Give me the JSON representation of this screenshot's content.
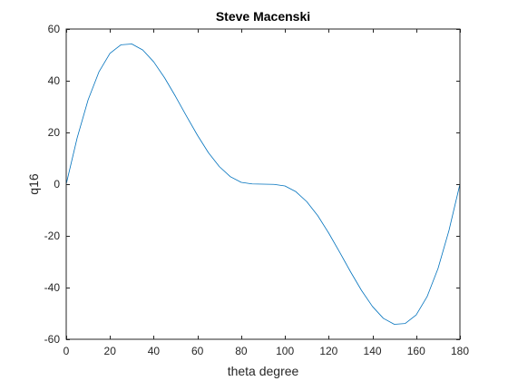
{
  "chart_data": {
    "type": "line",
    "title": "Steve Macenski",
    "xlabel": "theta degree",
    "ylabel": "q16",
    "xlim": [
      0,
      180
    ],
    "ylim": [
      -60,
      60
    ],
    "xticks": [
      0,
      20,
      40,
      60,
      80,
      100,
      120,
      140,
      160,
      180
    ],
    "yticks": [
      -60,
      -40,
      -20,
      0,
      20,
      40,
      60
    ],
    "grid": false,
    "series": [
      {
        "color": "#0072BD",
        "x": [
          0,
          5,
          10,
          15,
          20,
          25,
          30,
          35,
          40,
          45,
          50,
          55,
          60,
          65,
          70,
          75,
          80,
          85,
          90,
          95,
          100,
          105,
          110,
          115,
          120,
          125,
          130,
          135,
          140,
          145,
          150,
          155,
          160,
          165,
          170,
          175,
          180
        ],
        "y": [
          0,
          17.9,
          32.6,
          43.5,
          50.6,
          53.9,
          54.2,
          51.9,
          47.3,
          41.1,
          33.9,
          26.3,
          18.9,
          12.2,
          6.8,
          2.9,
          0.7,
          0.1,
          0,
          -0.1,
          -0.7,
          -2.9,
          -6.8,
          -12.2,
          -18.9,
          -26.3,
          -33.9,
          -41.1,
          -47.3,
          -51.9,
          -54.2,
          -53.9,
          -50.6,
          -43.5,
          -32.6,
          -17.9,
          0
        ]
      }
    ]
  }
}
